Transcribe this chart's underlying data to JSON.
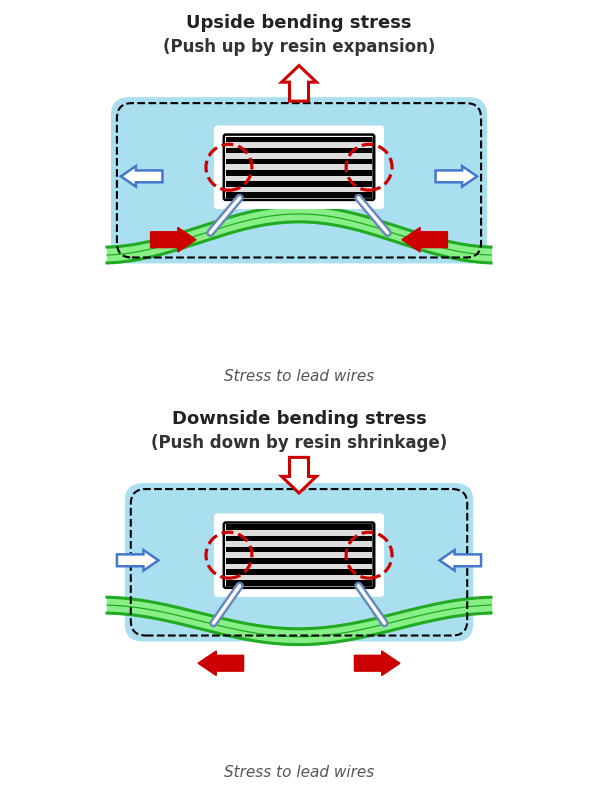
{
  "title1": "Upside bending stress",
  "subtitle1": "(Push up by resin expansion)",
  "title2": "Downside bending stress",
  "subtitle2": "(Push down by resin shrinkage)",
  "stress_label": "Stress to lead wires",
  "bg_color": "#ffffff",
  "light_blue": "#aadff0",
  "green_dark": "#22aa22",
  "green_light": "#88ee88",
  "red_arrow": "#cc0000",
  "blue_arrow": "#4477cc",
  "dashed_color": "#111111"
}
